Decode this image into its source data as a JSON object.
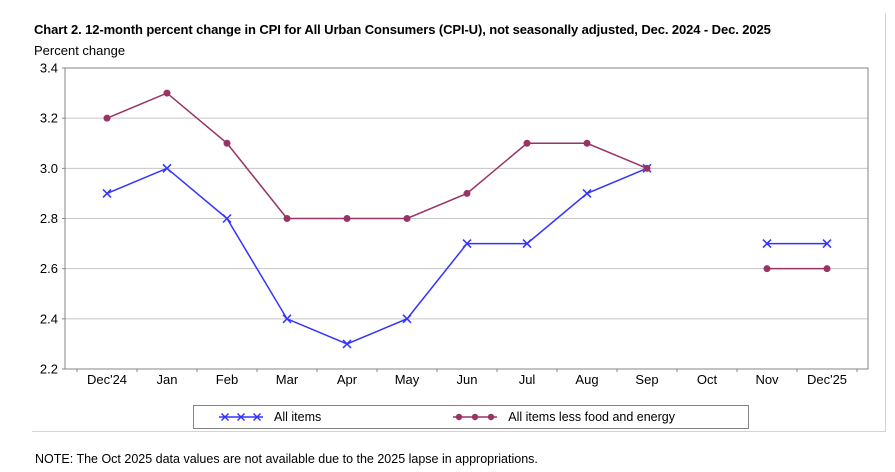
{
  "note": "NOTE: The Oct 2025 data values are not available due to the 2025 lapse in appropriations.",
  "chart_data": {
    "type": "line",
    "title": "Chart 2. 12-month percent change in CPI for All Urban Consumers (CPI-U), not seasonally adjusted, Dec. 2024 - Dec. 2025",
    "ylabel": "Percent change",
    "xlabel": "",
    "categories": [
      "Dec'24",
      "Jan",
      "Feb",
      "Mar",
      "Apr",
      "May",
      "Jun",
      "Jul",
      "Aug",
      "Sep",
      "Oct",
      "Nov",
      "Dec'25"
    ],
    "series": [
      {
        "name": "All items",
        "marker": "x",
        "color": "#3333ff",
        "values": [
          2.9,
          3.0,
          2.8,
          2.4,
          2.3,
          2.4,
          2.7,
          2.7,
          2.9,
          3.0,
          null,
          2.7,
          2.7
        ]
      },
      {
        "name": "All items less food and energy",
        "marker": "circle",
        "color": "#993366",
        "values": [
          3.2,
          3.3,
          3.1,
          2.8,
          2.8,
          2.8,
          2.9,
          3.1,
          3.1,
          3.0,
          null,
          2.6,
          2.6
        ]
      }
    ],
    "ylim": [
      2.2,
      3.4
    ],
    "ytick_step": 0.2,
    "grid": "horizontal",
    "legend_position": "bottom",
    "missing_note": "Oct 2025 values not available"
  },
  "colors": {
    "grid": "#c6c6c6",
    "frame": "#868686",
    "outer_border": "#d4d4d4",
    "text": "#000000"
  }
}
